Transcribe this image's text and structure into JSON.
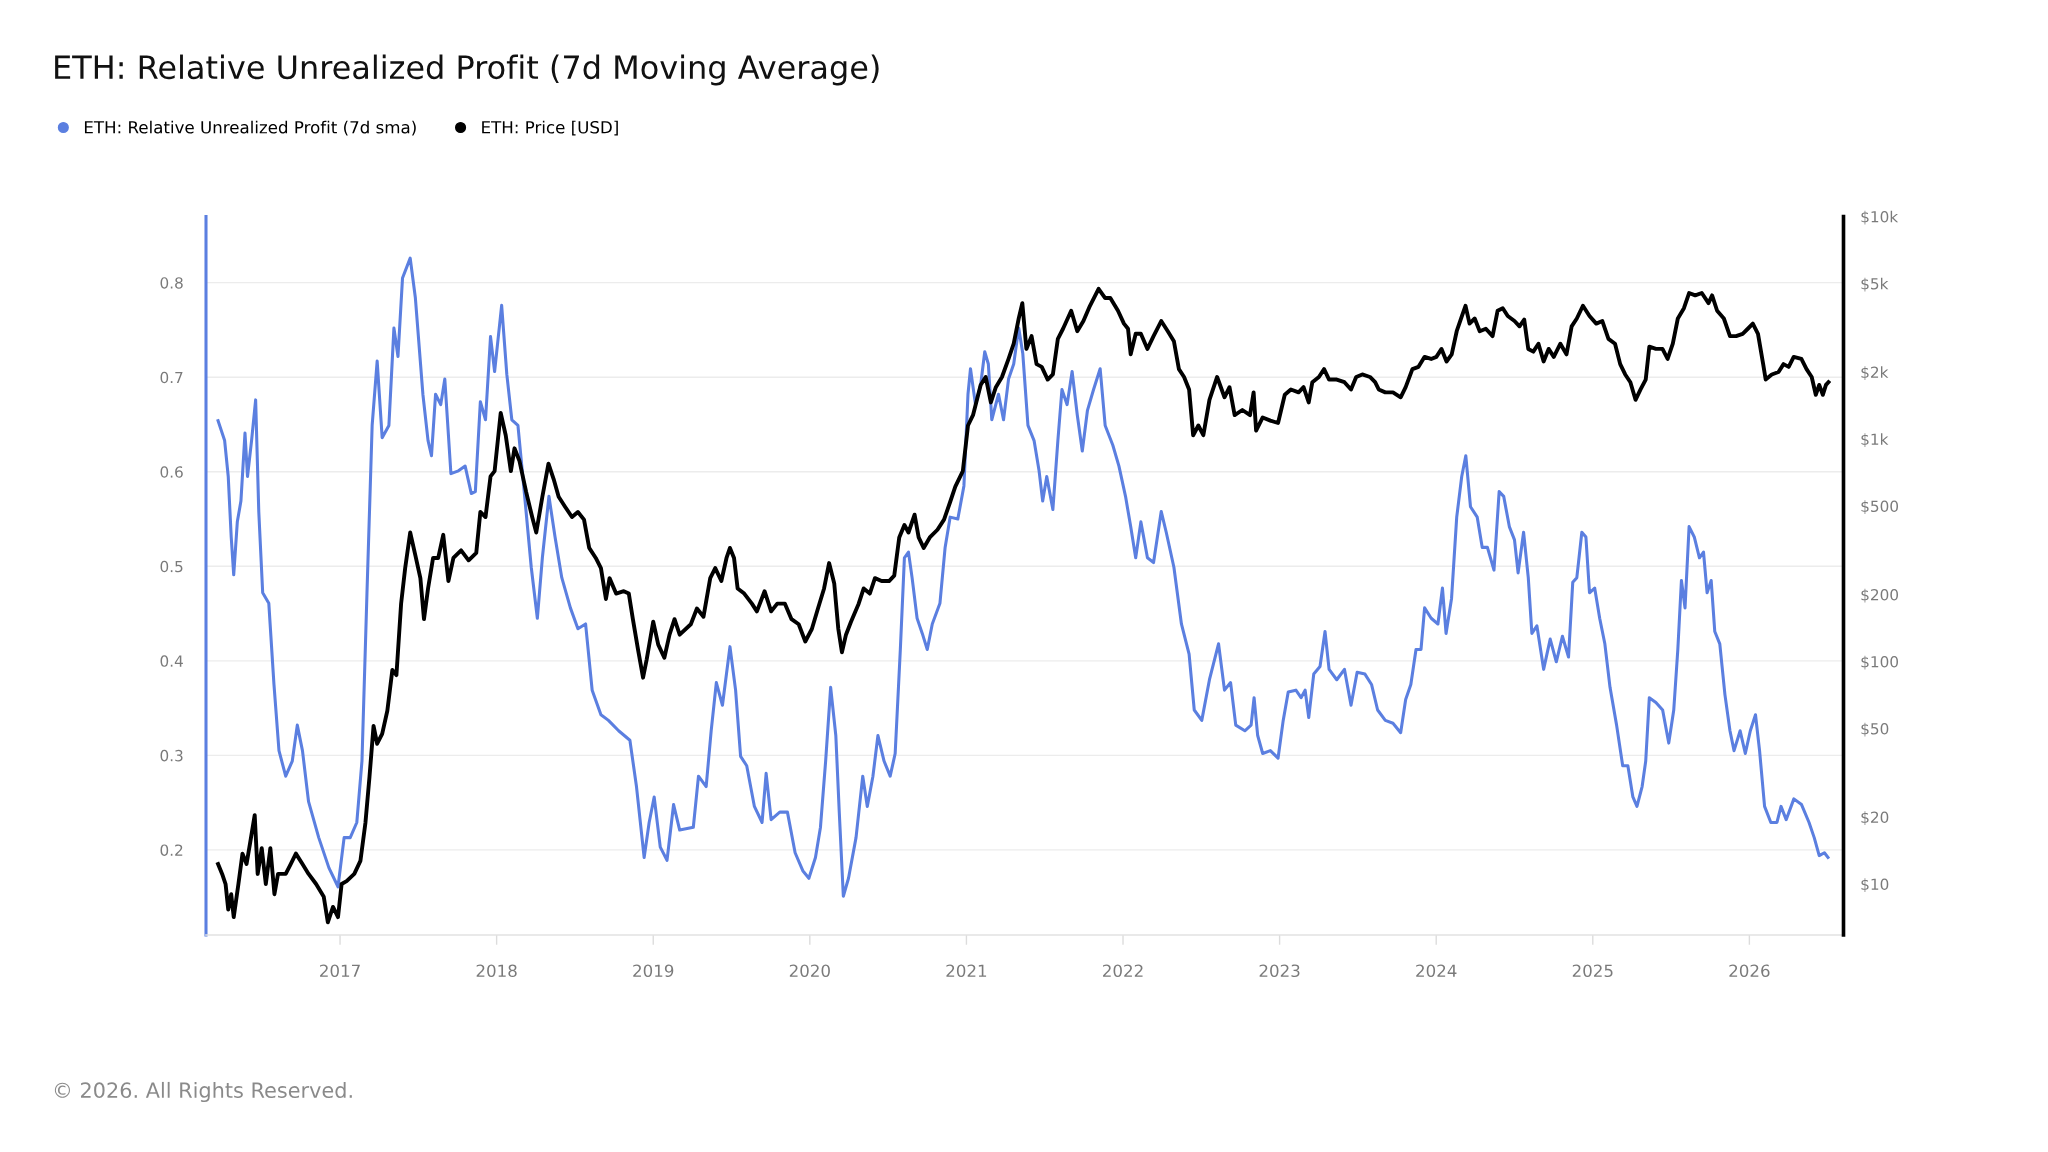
{
  "chart_data": {
    "type": "line",
    "title": "ETH: Relative Unrealized Profit (7d Moving Average)",
    "annotations": [
      "© 2026. All Rights Reserved."
    ],
    "xlim": [
      2016.144,
      2026.601
    ],
    "xticks": [
      2017,
      2018,
      2019,
      2020,
      2021,
      2022,
      2023,
      2024,
      2025,
      2026
    ],
    "ylim": [
      0.11,
      0.87
    ],
    "yticks": [
      0.2,
      0.3,
      0.4,
      0.5,
      0.6,
      0.7,
      0.8
    ],
    "y2lim": [
      5.9,
      10000
    ],
    "y2ticks": [
      {
        "value": 10,
        "label": "$10"
      },
      {
        "value": 20,
        "label": "$20"
      },
      {
        "value": 50,
        "label": "$50"
      },
      {
        "value": 100,
        "label": "$100"
      },
      {
        "value": 200,
        "label": "$200"
      },
      {
        "value": 500,
        "label": "$500"
      },
      {
        "value": 1000,
        "label": "$1k"
      },
      {
        "value": 2000,
        "label": "$2k"
      },
      {
        "value": 5000,
        "label": "$5k"
      },
      {
        "value": 10000,
        "label": "$10k"
      }
    ],
    "log": "y2",
    "grid": "y",
    "legend": "top left",
    "series": [
      {
        "name": "ETH: Relative Unrealized Profit (7d sma)",
        "color": "#5b7fe0",
        "x": [
          2016.221,
          2016.263,
          2016.286,
          2016.305,
          2016.321,
          2016.344,
          2016.367,
          2016.393,
          2016.409,
          2016.435,
          2016.461,
          2016.481,
          2016.506,
          2016.545,
          2016.578,
          2016.61,
          2016.653,
          2016.695,
          2016.727,
          2016.76,
          2016.799,
          2016.864,
          2016.929,
          2016.987,
          2017.026,
          2017.065,
          2017.107,
          2017.14,
          2017.172,
          2017.205,
          2017.237,
          2017.269,
          2017.312,
          2017.344,
          2017.37,
          2017.399,
          2017.448,
          2017.481,
          2017.529,
          2017.562,
          2017.584,
          2017.61,
          2017.643,
          2017.669,
          2017.708,
          2017.756,
          2017.799,
          2017.838,
          2017.864,
          2017.896,
          2017.929,
          2017.961,
          2017.987,
          2018.032,
          2018.065,
          2018.097,
          2018.136,
          2018.179,
          2018.221,
          2018.26,
          2018.292,
          2018.334,
          2018.373,
          2018.416,
          2018.471,
          2018.519,
          2018.568,
          2018.61,
          2018.666,
          2018.714,
          2018.779,
          2018.851,
          2018.893,
          2018.942,
          2018.974,
          2019.006,
          2019.045,
          2019.088,
          2019.13,
          2019.169,
          2019.256,
          2019.289,
          2019.338,
          2019.37,
          2019.403,
          2019.442,
          2019.49,
          2019.526,
          2019.558,
          2019.597,
          2019.646,
          2019.695,
          2019.721,
          2019.753,
          2019.808,
          2019.857,
          2019.906,
          2019.955,
          2019.994,
          2020.036,
          2020.068,
          2020.101,
          2020.133,
          2020.166,
          2020.188,
          2020.214,
          2020.247,
          2020.295,
          2020.338,
          2020.367,
          2020.403,
          2020.435,
          2020.474,
          2020.513,
          2020.545,
          2020.578,
          2020.604,
          2020.63,
          2020.653,
          2020.685,
          2020.718,
          2020.75,
          2020.782,
          2020.831,
          2020.864,
          2020.896,
          2020.945,
          2020.984,
          2021.01,
          2021.026,
          2021.058,
          2021.091,
          2021.117,
          2021.14,
          2021.162,
          2021.205,
          2021.237,
          2021.269,
          2021.302,
          2021.334,
          2021.36,
          2021.393,
          2021.432,
          2021.464,
          2021.487,
          2021.513,
          2021.552,
          2021.584,
          2021.61,
          2021.643,
          2021.675,
          2021.708,
          2021.74,
          2021.773,
          2021.812,
          2021.854,
          2021.886,
          2021.935,
          2021.974,
          2022.016,
          2022.049,
          2022.081,
          2022.114,
          2022.156,
          2022.195,
          2022.244,
          2022.276,
          2022.325,
          2022.373,
          2022.422,
          2022.455,
          2022.503,
          2022.552,
          2022.61,
          2022.648,
          2022.687,
          2022.72,
          2022.778,
          2022.818,
          2022.837,
          2022.86,
          2022.892,
          2022.941,
          2022.99,
          2023.023,
          2023.055,
          2023.104,
          2023.137,
          2023.163,
          2023.186,
          2023.218,
          2023.258,
          2023.29,
          2023.316,
          2023.365,
          2023.414,
          2023.456,
          2023.495,
          2023.545,
          2023.587,
          2023.626,
          2023.675,
          2023.724,
          2023.773,
          2023.805,
          2023.838,
          2023.871,
          2023.903,
          2023.926,
          2023.968,
          2024.011,
          2024.04,
          2024.063,
          2024.098,
          2024.131,
          2024.163,
          2024.189,
          2024.219,
          2024.262,
          2024.294,
          2024.327,
          2024.369,
          2024.402,
          2024.431,
          2024.467,
          2024.5,
          2024.523,
          2024.558,
          2024.588,
          2024.611,
          2024.643,
          2024.686,
          2024.728,
          2024.767,
          2024.806,
          2024.845,
          2024.872,
          2024.898,
          2024.93,
          2024.956,
          2024.979,
          2025.012,
          2025.044,
          2025.077,
          2025.11,
          2025.152,
          2025.191,
          2025.224,
          2025.256,
          2025.282,
          2025.315,
          2025.338,
          2025.361,
          2025.403,
          2025.446,
          2025.485,
          2025.517,
          2025.543,
          2025.566,
          2025.589,
          2025.615,
          2025.648,
          2025.681,
          2025.707,
          2025.73,
          2025.756,
          2025.779,
          2025.811,
          2025.844,
          2025.876,
          2025.902,
          2025.941,
          2025.974,
          2026.006,
          2026.039,
          2026.065,
          2026.097,
          2026.137,
          2026.176,
          2026.202,
          2026.235,
          2026.284,
          2026.333,
          2026.381,
          2026.414,
          2026.446,
          2026.479,
          2026.502
        ],
        "values": [
          0.654,
          0.633,
          0.595,
          0.531,
          0.491,
          0.547,
          0.569,
          0.641,
          0.595,
          0.633,
          0.676,
          0.558,
          0.472,
          0.461,
          0.375,
          0.305,
          0.278,
          0.294,
          0.332,
          0.305,
          0.251,
          0.213,
          0.181,
          0.161,
          0.213,
          0.213,
          0.229,
          0.294,
          0.472,
          0.649,
          0.717,
          0.636,
          0.649,
          0.752,
          0.722,
          0.805,
          0.826,
          0.784,
          0.682,
          0.633,
          0.617,
          0.682,
          0.671,
          0.698,
          0.598,
          0.601,
          0.606,
          0.577,
          0.579,
          0.674,
          0.655,
          0.743,
          0.706,
          0.776,
          0.703,
          0.655,
          0.649,
          0.574,
          0.499,
          0.445,
          0.509,
          0.574,
          0.531,
          0.488,
          0.456,
          0.434,
          0.439,
          0.369,
          0.343,
          0.337,
          0.326,
          0.316,
          0.267,
          0.192,
          0.229,
          0.256,
          0.203,
          0.189,
          0.248,
          0.221,
          0.224,
          0.278,
          0.267,
          0.326,
          0.377,
          0.353,
          0.415,
          0.369,
          0.299,
          0.289,
          0.246,
          0.229,
          0.281,
          0.232,
          0.24,
          0.24,
          0.197,
          0.178,
          0.17,
          0.192,
          0.224,
          0.294,
          0.372,
          0.321,
          0.24,
          0.151,
          0.17,
          0.213,
          0.278,
          0.246,
          0.278,
          0.321,
          0.294,
          0.278,
          0.302,
          0.412,
          0.509,
          0.515,
          0.488,
          0.445,
          0.429,
          0.412,
          0.439,
          0.461,
          0.52,
          0.552,
          0.55,
          0.585,
          0.682,
          0.709,
          0.671,
          0.692,
          0.727,
          0.714,
          0.655,
          0.682,
          0.655,
          0.698,
          0.714,
          0.752,
          0.725,
          0.649,
          0.633,
          0.601,
          0.569,
          0.595,
          0.56,
          0.633,
          0.687,
          0.671,
          0.706,
          0.66,
          0.622,
          0.665,
          0.687,
          0.709,
          0.649,
          0.628,
          0.606,
          0.574,
          0.542,
          0.509,
          0.547,
          0.509,
          0.504,
          0.558,
          0.536,
          0.499,
          0.439,
          0.407,
          0.348,
          0.337,
          0.38,
          0.418,
          0.369,
          0.377,
          0.332,
          0.326,
          0.332,
          0.361,
          0.321,
          0.302,
          0.305,
          0.297,
          0.337,
          0.367,
          0.369,
          0.361,
          0.369,
          0.34,
          0.386,
          0.394,
          0.431,
          0.391,
          0.38,
          0.391,
          0.353,
          0.388,
          0.386,
          0.375,
          0.348,
          0.337,
          0.334,
          0.324,
          0.359,
          0.375,
          0.412,
          0.412,
          0.456,
          0.445,
          0.439,
          0.477,
          0.429,
          0.466,
          0.552,
          0.595,
          0.617,
          0.563,
          0.552,
          0.52,
          0.52,
          0.496,
          0.579,
          0.574,
          0.542,
          0.528,
          0.493,
          0.536,
          0.488,
          0.429,
          0.437,
          0.391,
          0.423,
          0.399,
          0.426,
          0.404,
          0.483,
          0.488,
          0.536,
          0.531,
          0.472,
          0.477,
          0.445,
          0.418,
          0.372,
          0.332,
          0.289,
          0.289,
          0.256,
          0.246,
          0.267,
          0.294,
          0.361,
          0.356,
          0.348,
          0.313,
          0.348,
          0.412,
          0.485,
          0.456,
          0.542,
          0.531,
          0.509,
          0.515,
          0.472,
          0.485,
          0.431,
          0.418,
          0.364,
          0.326,
          0.305,
          0.326,
          0.302,
          0.326,
          0.343,
          0.305,
          0.246,
          0.229,
          0.229,
          0.246,
          0.232,
          0.254,
          0.248,
          0.229,
          0.213,
          0.194,
          0.197,
          0.192
        ]
      },
      {
        "name": "ETH: Price [USD]",
        "color": "#000000",
        "axis": "y2",
        "x": [
          2016.221,
          2016.247,
          2016.269,
          2016.286,
          2016.305,
          2016.321,
          2016.351,
          2016.377,
          2016.403,
          2016.425,
          2016.455,
          2016.474,
          2016.5,
          2016.526,
          2016.555,
          2016.581,
          2016.604,
          2016.653,
          2016.685,
          2016.718,
          2016.76,
          2016.799,
          2016.847,
          2016.896,
          2016.922,
          2016.955,
          2016.987,
          2017.01,
          2017.042,
          2017.091,
          2017.13,
          2017.162,
          2017.188,
          2017.214,
          2017.237,
          2017.269,
          2017.302,
          2017.334,
          2017.36,
          2017.39,
          2017.416,
          2017.448,
          2017.481,
          2017.513,
          2017.536,
          2017.562,
          2017.594,
          2017.627,
          2017.659,
          2017.692,
          2017.724,
          2017.773,
          2017.821,
          2017.87,
          2017.896,
          2017.929,
          2017.961,
          2017.987,
          2018.026,
          2018.058,
          2018.091,
          2018.114,
          2018.146,
          2018.188,
          2018.227,
          2018.253,
          2018.292,
          2018.331,
          2018.364,
          2018.396,
          2018.438,
          2018.481,
          2018.519,
          2018.558,
          2018.591,
          2018.633,
          2018.666,
          2018.698,
          2018.721,
          2018.763,
          2018.812,
          2018.844,
          2018.87,
          2018.903,
          2018.935,
          2018.958,
          2019.0,
          2019.032,
          2019.071,
          2019.104,
          2019.136,
          2019.169,
          2019.24,
          2019.279,
          2019.321,
          2019.364,
          2019.396,
          2019.435,
          2019.468,
          2019.49,
          2019.516,
          2019.539,
          2019.581,
          2019.63,
          2019.662,
          2019.711,
          2019.753,
          2019.792,
          2019.841,
          2019.883,
          2019.929,
          2019.971,
          2020.013,
          2020.052,
          2020.091,
          2020.123,
          2020.156,
          2020.182,
          2020.205,
          2020.231,
          2020.263,
          2020.312,
          2020.344,
          2020.383,
          2020.416,
          2020.458,
          2020.506,
          2020.539,
          2020.571,
          2020.604,
          2020.63,
          2020.669,
          2020.695,
          2020.727,
          2020.766,
          2020.815,
          2020.857,
          2020.896,
          2020.929,
          2020.977,
          2021.01,
          2021.042,
          2021.091,
          2021.123,
          2021.156,
          2021.188,
          2021.227,
          2021.269,
          2021.302,
          2021.334,
          2021.357,
          2021.383,
          2021.416,
          2021.448,
          2021.481,
          2021.519,
          2021.552,
          2021.584,
          2021.617,
          2021.669,
          2021.708,
          2021.747,
          2021.789,
          2021.844,
          2021.886,
          2021.919,
          2021.968,
          2022.006,
          2022.032,
          2022.049,
          2022.081,
          2022.114,
          2022.156,
          2022.195,
          2022.244,
          2022.286,
          2022.325,
          2022.357,
          2022.39,
          2022.422,
          2022.448,
          2022.481,
          2022.513,
          2022.552,
          2022.601,
          2022.648,
          2022.68,
          2022.713,
          2022.762,
          2022.811,
          2022.834,
          2022.85,
          2022.892,
          2022.941,
          2022.99,
          2023.033,
          2023.072,
          2023.121,
          2023.153,
          2023.186,
          2023.209,
          2023.251,
          2023.284,
          2023.316,
          2023.365,
          2023.414,
          2023.456,
          2023.489,
          2023.528,
          2023.577,
          2023.61,
          2023.633,
          2023.675,
          2023.724,
          2023.773,
          2023.805,
          2023.848,
          2023.887,
          2023.926,
          2023.968,
          2024.001,
          2024.034,
          2024.066,
          2024.099,
          2024.131,
          2024.164,
          2024.187,
          2024.213,
          2024.246,
          2024.278,
          2024.317,
          2024.36,
          2024.392,
          2024.425,
          2024.457,
          2024.5,
          2024.532,
          2024.562,
          2024.588,
          2024.62,
          2024.653,
          2024.686,
          2024.718,
          2024.751,
          2024.793,
          2024.832,
          2024.865,
          2024.898,
          2024.937,
          2024.979,
          2025.022,
          2025.061,
          2025.1,
          2025.142,
          2025.175,
          2025.207,
          2025.24,
          2025.273,
          2025.305,
          2025.338,
          2025.361,
          2025.403,
          2025.445,
          2025.478,
          2025.511,
          2025.543,
          2025.582,
          2025.615,
          2025.654,
          2025.696,
          2025.739,
          2025.762,
          2025.794,
          2025.837,
          2025.876,
          2025.915,
          2025.957,
          2025.99,
          2026.022,
          2026.055,
          2026.088,
          2026.104,
          2026.143,
          2026.186,
          2026.218,
          2026.251,
          2026.283,
          2026.332,
          2026.365,
          2026.398,
          2026.424,
          2026.446,
          2026.469,
          2026.489,
          2026.505
        ],
        "values": [
          12.3,
          11.1,
          10.0,
          7.68,
          9.0,
          7.1,
          10.0,
          13.7,
          12.3,
          15.2,
          20.4,
          11.1,
          14.5,
          10.0,
          14.5,
          9.0,
          11.1,
          11.1,
          12.3,
          13.7,
          12.3,
          11.1,
          10.0,
          8.77,
          6.73,
          7.89,
          7.1,
          10.0,
          10.3,
          11.1,
          12.7,
          18.8,
          30.3,
          51.3,
          42.7,
          47.3,
          60.1,
          91.6,
          86.9,
          182,
          263,
          380,
          300,
          237,
          155,
          213,
          292,
          292,
          371,
          230,
          292,
          316,
          285,
          308,
          470,
          446,
          679,
          717,
          1310,
          1040,
          717,
          908,
          796,
          580,
          446,
          380,
          550,
          775,
          661,
          550,
          495,
          446,
          470,
          434,
          324,
          292,
          263,
          191,
          237,
          202,
          207,
          202,
          155,
          113,
          84.6,
          102,
          151,
          119,
          104,
          132,
          155,
          132,
          147,
          173,
          159,
          237,
          263,
          230,
          292,
          324,
          292,
          213,
          202,
          182,
          168,
          207,
          168,
          182,
          182,
          155,
          147,
          123,
          140,
          173,
          213,
          277,
          224,
          140,
          110,
          132,
          151,
          182,
          213,
          202,
          237,
          230,
          230,
          243,
          361,
          411,
          380,
          457,
          361,
          324,
          361,
          391,
          434,
          521,
          611,
          717,
          1150,
          1280,
          1750,
          1900,
          1460,
          1710,
          1900,
          2290,
          2680,
          3480,
          4080,
          2540,
          2900,
          2170,
          2110,
          1850,
          1950,
          2820,
          3130,
          3770,
          3050,
          3390,
          3970,
          4730,
          4300,
          4300,
          3770,
          3300,
          3130,
          2400,
          2970,
          2970,
          2540,
          2900,
          3390,
          3050,
          2750,
          2060,
          1900,
          1670,
          1040,
          1150,
          1040,
          1500,
          1900,
          1540,
          1710,
          1280,
          1350,
          1280,
          1620,
          1090,
          1250,
          1210,
          1180,
          1580,
          1670,
          1620,
          1710,
          1460,
          1800,
          1900,
          2060,
          1850,
          1850,
          1800,
          1670,
          1900,
          1950,
          1900,
          1800,
          1670,
          1620,
          1620,
          1540,
          1710,
          2060,
          2110,
          2340,
          2290,
          2340,
          2540,
          2230,
          2400,
          3050,
          3570,
          3970,
          3300,
          3480,
          3050,
          3130,
          2900,
          3770,
          3870,
          3570,
          3390,
          3210,
          3440,
          2540,
          2470,
          2680,
          2230,
          2540,
          2340,
          2680,
          2400,
          3210,
          3480,
          3970,
          3570,
          3300,
          3390,
          2820,
          2680,
          2170,
          1950,
          1800,
          1500,
          1670,
          1850,
          2600,
          2540,
          2540,
          2290,
          2680,
          3480,
          3870,
          4530,
          4420,
          4530,
          4080,
          4420,
          3770,
          3480,
          2900,
          2900,
          2970,
          3130,
          3300,
          2970,
          2170,
          1850,
          1950,
          2000,
          2170,
          2110,
          2340,
          2290,
          2060,
          1900,
          1580,
          1750,
          1580,
          1750,
          1800
        ]
      }
    ]
  }
}
